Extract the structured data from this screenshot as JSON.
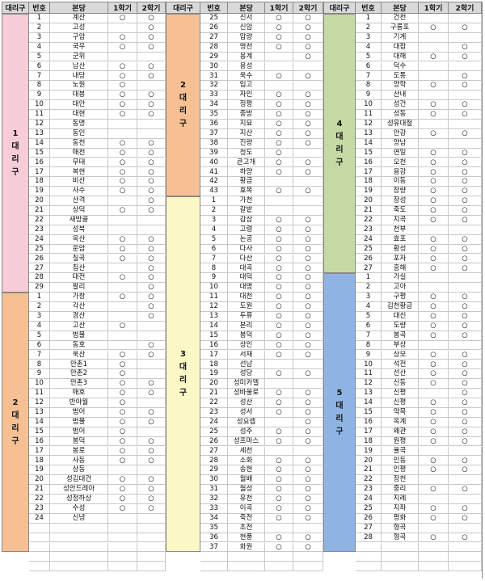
{
  "headers": [
    "대리구",
    "번호",
    "본당",
    "1학기",
    "2학기"
  ],
  "mark": "○",
  "groups": [
    {
      "districts": [
        {
          "label": "1\n대\n리\n구",
          "color": "#f8ccd6",
          "rows": 29
        },
        {
          "label": "2\n대\n리\n구",
          "color": "#f6c093",
          "rows": 24,
          "extra": 3
        }
      ],
      "rows": [
        [
          "1",
          "계산",
          "○",
          "○"
        ],
        [
          "2",
          "고성",
          "",
          "○"
        ],
        [
          "3",
          "구암",
          "○",
          "○"
        ],
        [
          "4",
          "국우",
          "○",
          "○"
        ],
        [
          "5",
          "군위",
          "",
          ""
        ],
        [
          "6",
          "남산",
          "○",
          "○"
        ],
        [
          "7",
          "내당",
          "○",
          "○"
        ],
        [
          "8",
          "노원",
          "○",
          ""
        ],
        [
          "9",
          "대봉",
          "○",
          "○"
        ],
        [
          "10",
          "대안",
          "○",
          "○"
        ],
        [
          "11",
          "대현",
          "○",
          "○"
        ],
        [
          "12",
          "동명",
          "",
          ""
        ],
        [
          "13",
          "동인",
          "",
          ""
        ],
        [
          "14",
          "동천",
          "○",
          "○"
        ],
        [
          "15",
          "매천",
          "○",
          "○"
        ],
        [
          "16",
          "무태",
          "○",
          "○"
        ],
        [
          "17",
          "복현",
          "○",
          "○"
        ],
        [
          "18",
          "비산",
          "○",
          "○"
        ],
        [
          "19",
          "사수",
          "○",
          "○"
        ],
        [
          "20",
          "산격",
          "",
          "○"
        ],
        [
          "21",
          "상덕",
          "○",
          "○"
        ],
        [
          "22",
          "새방골",
          "",
          ""
        ],
        [
          "23",
          "성북",
          "",
          ""
        ],
        [
          "24",
          "옥산",
          "○",
          "○"
        ],
        [
          "25",
          "운암",
          "○",
          "○"
        ],
        [
          "26",
          "칠곡",
          "○",
          "○"
        ],
        [
          "27",
          "침산",
          "",
          "○"
        ],
        [
          "28",
          "태전",
          "○",
          "○"
        ],
        [
          "29",
          "팔리",
          "",
          "○"
        ],
        [
          "1",
          "가창",
          "○",
          "○"
        ],
        [
          "2",
          "각산",
          "",
          "○"
        ],
        [
          "3",
          "경산",
          "",
          "○"
        ],
        [
          "4",
          "고산",
          "○",
          ""
        ],
        [
          "5",
          "범물",
          "",
          ""
        ],
        [
          "6",
          "동호",
          "",
          "○"
        ],
        [
          "7",
          "욱산",
          "○",
          "○"
        ],
        [
          "8",
          "만촌1",
          "○",
          ""
        ],
        [
          "9",
          "만촌2",
          "○",
          ""
        ],
        [
          "10",
          "만촌3",
          "○",
          "○"
        ],
        [
          "11",
          "매호",
          "○",
          "○"
        ],
        [
          "12",
          "반야월",
          "○",
          ""
        ],
        [
          "13",
          "범어",
          "○",
          "○"
        ],
        [
          "14",
          "범물",
          "○",
          "○"
        ],
        [
          "15",
          "범어",
          "○",
          ""
        ],
        [
          "16",
          "봉덕",
          "○",
          "○"
        ],
        [
          "17",
          "봉로",
          "○",
          "○"
        ],
        [
          "18",
          "사동",
          "○",
          "○"
        ],
        [
          "19",
          "상동",
          "",
          ""
        ],
        [
          "20",
          "성김대건",
          "○",
          "○"
        ],
        [
          "21",
          "성안드레아",
          "○",
          "○"
        ],
        [
          "22",
          "성정하상",
          "○",
          "○"
        ],
        [
          "23",
          "수성",
          "○",
          "○"
        ],
        [
          "24",
          "신녕",
          "",
          ""
        ]
      ]
    },
    {
      "districts": [
        {
          "label": "2\n대\n리\n구",
          "color": "#f6c093",
          "rows": 19
        },
        {
          "label": "3\n대\n리\n구",
          "color": "#fcf7c7",
          "rows": 37
        }
      ],
      "rows": [
        [
          "25",
          "신서",
          "○",
          "○"
        ],
        [
          "26",
          "신암",
          "○",
          "○"
        ],
        [
          "27",
          "압량",
          "○",
          "○"
        ],
        [
          "28",
          "영천",
          "○",
          "○"
        ],
        [
          "29",
          "용계",
          "",
          "○"
        ],
        [
          "30",
          "용성",
          "",
          ""
        ],
        [
          "31",
          "욱수",
          "○",
          "○"
        ],
        [
          "32",
          "입고",
          "",
          ""
        ],
        [
          "33",
          "자인",
          "○",
          "○"
        ],
        [
          "34",
          "정평",
          "○",
          "○"
        ],
        [
          "35",
          "중방",
          "○",
          "○"
        ],
        [
          "36",
          "지묘",
          "○",
          "○"
        ],
        [
          "37",
          "지산",
          "○",
          "○"
        ],
        [
          "38",
          "진량",
          "○",
          "○"
        ],
        [
          "39",
          "청도",
          "○",
          ""
        ],
        [
          "40",
          "큰고개",
          "○",
          "○"
        ],
        [
          "41",
          "하양",
          "○",
          "○"
        ],
        [
          "42",
          "황금",
          "",
          ""
        ],
        [
          "43",
          "효목",
          "○",
          "○"
        ],
        [
          "1",
          "가천",
          "",
          ""
        ],
        [
          "2",
          "갈밭",
          "",
          ""
        ],
        [
          "3",
          "감삼",
          "○",
          "○"
        ],
        [
          "4",
          "고령",
          "○",
          "○"
        ],
        [
          "5",
          "논공",
          "○",
          "○"
        ],
        [
          "6",
          "다사",
          "○",
          "○"
        ],
        [
          "7",
          "다산",
          "○",
          "○"
        ],
        [
          "8",
          "대곡",
          "○",
          "○"
        ],
        [
          "9",
          "대덕",
          "○",
          "○"
        ],
        [
          "10",
          "대명",
          "○",
          "○"
        ],
        [
          "11",
          "대천",
          "○",
          "○"
        ],
        [
          "12",
          "도원",
          "○",
          "○"
        ],
        [
          "13",
          "두류",
          "○",
          "○"
        ],
        [
          "14",
          "본리",
          "○",
          "○"
        ],
        [
          "15",
          "봉덕",
          "○",
          "○"
        ],
        [
          "16",
          "상인",
          "○",
          "○"
        ],
        [
          "17",
          "서재",
          "○",
          "○"
        ],
        [
          "18",
          "선남",
          "",
          ""
        ],
        [
          "19",
          "성당",
          "○",
          "○"
        ],
        [
          "20",
          "성미카엘",
          "",
          ""
        ],
        [
          "21",
          "성바울로",
          "○",
          "○"
        ],
        [
          "22",
          "성산",
          "○",
          "○"
        ],
        [
          "23",
          "성서",
          "○",
          "○"
        ],
        [
          "24",
          "성요셉",
          "",
          "○"
        ],
        [
          "25",
          "성주",
          "○",
          "○"
        ],
        [
          "26",
          "성프마스",
          "○",
          "○"
        ],
        [
          "27",
          "세천",
          "",
          ""
        ],
        [
          "28",
          "소화",
          "○",
          "○"
        ],
        [
          "29",
          "송현",
          "○",
          "○"
        ],
        [
          "30",
          "월배",
          "○",
          "○"
        ],
        [
          "31",
          "월성",
          "○",
          "○"
        ],
        [
          "32",
          "유천",
          "○",
          "○"
        ],
        [
          "33",
          "이곡",
          "○",
          "○"
        ],
        [
          "34",
          "죽전",
          "○",
          "○"
        ],
        [
          "35",
          "초전",
          "",
          ""
        ],
        [
          "36",
          "현풍",
          "○",
          "○"
        ],
        [
          "37",
          "화원",
          "○",
          "○"
        ]
      ]
    },
    {
      "districts": [
        {
          "label": "4\n대\n리\n구",
          "color": "#c4d9a3",
          "rows": 27
        },
        {
          "label": "5\n대\n리\n구",
          "color": "#8fb4e3",
          "rows": 28,
          "extra": 1
        }
      ],
      "rows": [
        [
          "1",
          "건천",
          "",
          ""
        ],
        [
          "2",
          "구룡포",
          "○",
          "○"
        ],
        [
          "3",
          "기계",
          "",
          ""
        ],
        [
          "4",
          "대잠",
          "",
          "○"
        ],
        [
          "5",
          "대해",
          "○",
          "○"
        ],
        [
          "6",
          "덕수",
          "",
          ""
        ],
        [
          "7",
          "도통",
          "",
          "○"
        ],
        [
          "8",
          "양학",
          "○",
          "○"
        ],
        [
          "9",
          "산내",
          "",
          ""
        ],
        [
          "10",
          "성건",
          "○",
          "○"
        ],
        [
          "11",
          "성동",
          "○",
          "○"
        ],
        [
          "12",
          "성유대철",
          "",
          ""
        ],
        [
          "13",
          "안강",
          "○",
          "○"
        ],
        [
          "14",
          "양남",
          "",
          ""
        ],
        [
          "15",
          "연일",
          "○",
          "○"
        ],
        [
          "16",
          "오천",
          "○",
          "○"
        ],
        [
          "17",
          "용강",
          "○",
          "○"
        ],
        [
          "18",
          "이동",
          "○",
          "○"
        ],
        [
          "19",
          "장량",
          "○",
          "○"
        ],
        [
          "20",
          "장성",
          "○",
          "○"
        ],
        [
          "21",
          "죽도",
          "○",
          "○"
        ],
        [
          "22",
          "지곡",
          "○",
          "○"
        ],
        [
          "23",
          "천부",
          "",
          ""
        ],
        [
          "24",
          "효포",
          "○",
          "○"
        ],
        [
          "25",
          "황성",
          "○",
          "○"
        ],
        [
          "26",
          "포자",
          "○",
          "○"
        ],
        [
          "27",
          "흥해",
          "○",
          "○"
        ],
        [
          "1",
          "가실",
          "",
          ""
        ],
        [
          "2",
          "고아",
          "",
          ""
        ],
        [
          "3",
          "구평",
          "○",
          "○"
        ],
        [
          "4",
          "김천황금",
          "○",
          "○"
        ],
        [
          "5",
          "대신",
          "○",
          "○"
        ],
        [
          "6",
          "도량",
          "○",
          "○"
        ],
        [
          "7",
          "봉곡",
          "○",
          "○"
        ],
        [
          "8",
          "부상",
          "",
          ""
        ],
        [
          "9",
          "상모",
          "○",
          "○"
        ],
        [
          "10",
          "석전",
          "○",
          "○"
        ],
        [
          "11",
          "선산",
          "○",
          "○"
        ],
        [
          "12",
          "신동",
          "○",
          "○"
        ],
        [
          "13",
          "신평",
          "",
          "○"
        ],
        [
          "14",
          "신평",
          "○",
          "○"
        ],
        [
          "15",
          "약목",
          "○",
          "○"
        ],
        [
          "16",
          "옥계",
          "○",
          "○"
        ],
        [
          "17",
          "왜관",
          "○",
          "○"
        ],
        [
          "18",
          "원평",
          "○",
          "○"
        ],
        [
          "19",
          "율곡",
          "",
          ""
        ],
        [
          "20",
          "인동",
          "○",
          "○"
        ],
        [
          "21",
          "인평",
          "○",
          "○"
        ],
        [
          "22",
          "장천",
          "",
          ""
        ],
        [
          "23",
          "중리",
          "○",
          "○"
        ],
        [
          "24",
          "지례",
          "",
          ""
        ],
        [
          "25",
          "지좌",
          "○",
          "○"
        ],
        [
          "26",
          "평화",
          "○",
          "○"
        ],
        [
          "27",
          "형곡",
          "",
          ""
        ],
        [
          "28",
          "형곡",
          "○",
          "○"
        ]
      ]
    }
  ]
}
